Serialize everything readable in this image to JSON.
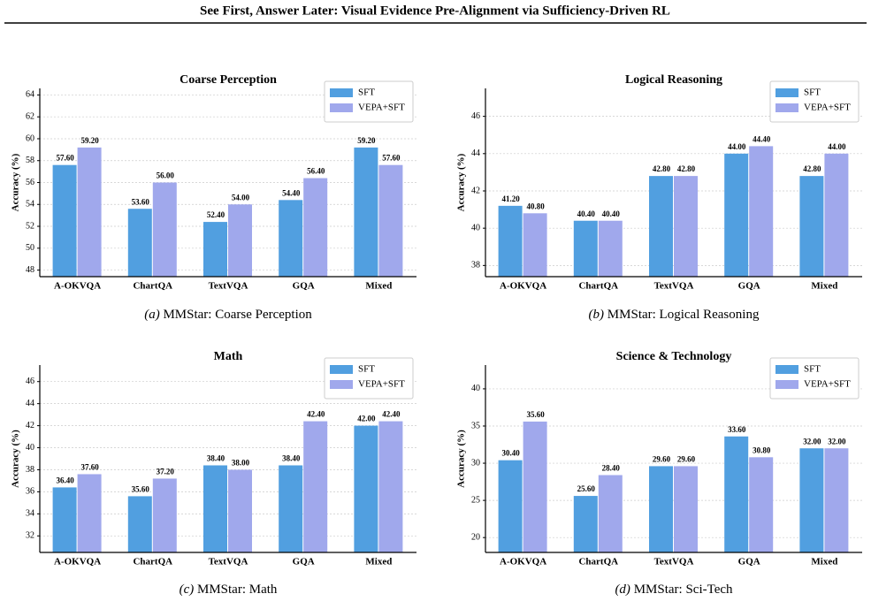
{
  "header": {
    "title": "See First, Answer Later: Visual Evidence Pre-Alignment via Sufficiency-Driven RL"
  },
  "chart_data": [
    {
      "type": "bar",
      "title": "Coarse Perception",
      "ylabel": "Accuracy (%)",
      "categories": [
        "A-OKVQA",
        "ChartQA",
        "TextVQA",
        "GQA",
        "Mixed"
      ],
      "series": [
        {
          "name": "SFT",
          "color": "#519fe0",
          "values": [
            57.6,
            53.6,
            52.4,
            54.4,
            59.2
          ],
          "value_labels": [
            "57.60",
            "53.60",
            "52.40",
            "54.40",
            "59.20"
          ]
        },
        {
          "name": "VEPA+SFT",
          "color": "#a0a8ec",
          "values": [
            59.2,
            56.0,
            54.0,
            56.4,
            57.6
          ],
          "value_labels": [
            "59.20",
            "56.00",
            "54.00",
            "56.40",
            "57.60"
          ]
        }
      ],
      "ylim": [
        47.4,
        64.6
      ],
      "yticks": [
        48,
        50,
        52,
        54,
        56,
        58,
        60,
        62,
        64
      ],
      "grid": true,
      "legend": "upper right",
      "caption_label": "(a)",
      "caption": "MMStar: Coarse Perception"
    },
    {
      "type": "bar",
      "title": "Logical Reasoning",
      "ylabel": "Accuracy (%)",
      "categories": [
        "A-OKVQA",
        "ChartQA",
        "TextVQA",
        "GQA",
        "Mixed"
      ],
      "series": [
        {
          "name": "SFT",
          "color": "#519fe0",
          "values": [
            41.2,
            40.4,
            42.8,
            44.0,
            42.8
          ],
          "value_labels": [
            "41.20",
            "40.40",
            "42.80",
            "44.00",
            "42.80"
          ]
        },
        {
          "name": "VEPA+SFT",
          "color": "#a0a8ec",
          "values": [
            40.8,
            40.4,
            42.8,
            44.4,
            44.0
          ],
          "value_labels": [
            "40.80",
            "40.40",
            "42.80",
            "44.40",
            "44.00"
          ]
        }
      ],
      "ylim": [
        37.4,
        47.5
      ],
      "yticks": [
        38,
        40,
        42,
        44,
        46
      ],
      "grid": true,
      "legend": "upper right",
      "caption_label": "(b)",
      "caption": "MMStar: Logical Reasoning"
    },
    {
      "type": "bar",
      "title": "Math",
      "ylabel": "Accuracy (%)",
      "categories": [
        "A-OKVQA",
        "ChartQA",
        "TextVQA",
        "GQA",
        "Mixed"
      ],
      "series": [
        {
          "name": "SFT",
          "color": "#519fe0",
          "values": [
            36.4,
            35.6,
            38.4,
            38.4,
            42.0
          ],
          "value_labels": [
            "36.40",
            "35.60",
            "38.40",
            "38.40",
            "42.00"
          ]
        },
        {
          "name": "VEPA+SFT",
          "color": "#a0a8ec",
          "values": [
            37.6,
            37.2,
            38.0,
            42.4,
            42.4
          ],
          "value_labels": [
            "37.60",
            "37.20",
            "38.00",
            "42.40",
            "42.40"
          ]
        }
      ],
      "ylim": [
        30.5,
        47.5
      ],
      "yticks": [
        32,
        34,
        36,
        38,
        40,
        42,
        44,
        46
      ],
      "grid": true,
      "legend": "upper right",
      "caption_label": "(c)",
      "caption": "MMStar: Math"
    },
    {
      "type": "bar",
      "title": "Science & Technology",
      "ylabel": "Accuracy (%)",
      "categories": [
        "A-OKVQA",
        "ChartQA",
        "TextVQA",
        "GQA",
        "Mixed"
      ],
      "series": [
        {
          "name": "SFT",
          "color": "#519fe0",
          "values": [
            30.4,
            25.6,
            29.6,
            33.6,
            32.0
          ],
          "value_labels": [
            "30.40",
            "25.60",
            "29.60",
            "33.60",
            "32.00"
          ]
        },
        {
          "name": "VEPA+SFT",
          "color": "#a0a8ec",
          "values": [
            35.6,
            28.4,
            29.6,
            30.8,
            32.0
          ],
          "value_labels": [
            "35.60",
            "28.40",
            "29.60",
            "30.80",
            "32.00"
          ]
        }
      ],
      "ylim": [
        18,
        43.2
      ],
      "yticks": [
        20,
        25,
        30,
        35,
        40
      ],
      "grid": true,
      "legend": "upper right",
      "caption_label": "(d)",
      "caption": "MMStar: Sci-Tech"
    }
  ]
}
